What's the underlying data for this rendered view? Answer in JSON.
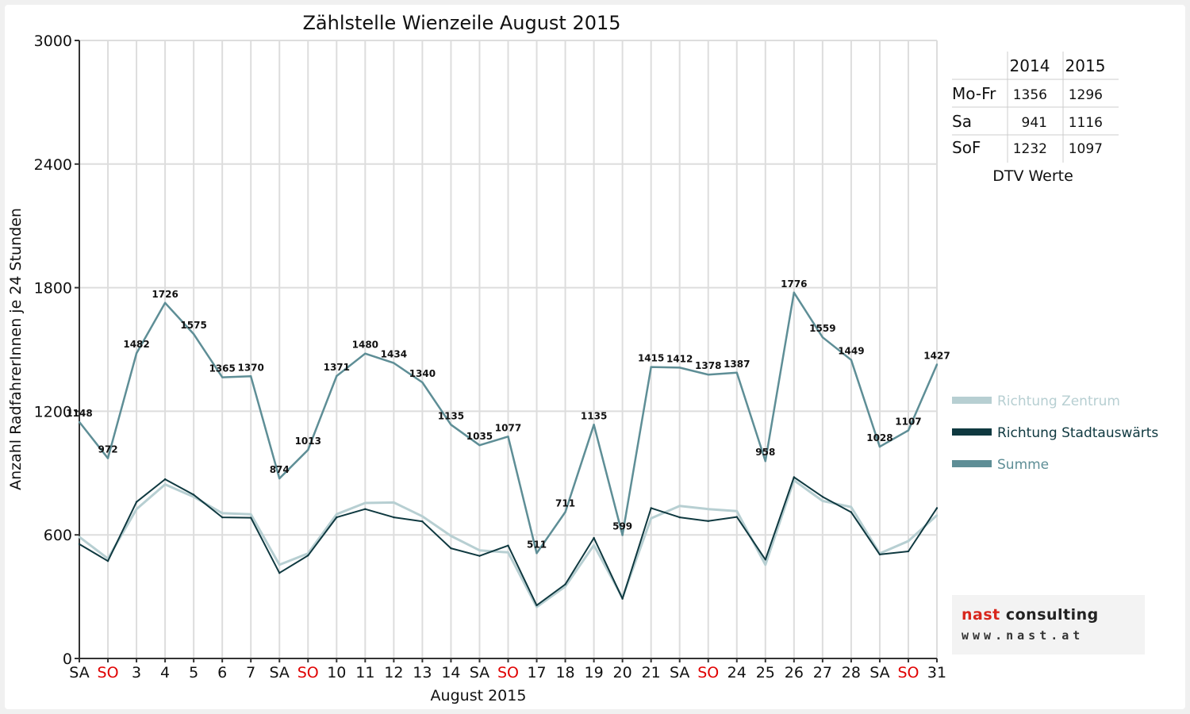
{
  "chart_data": {
    "type": "line",
    "title": "Zählstelle Wienzeile August 2015",
    "xlabel": "August 2015",
    "ylabel": "Anzahl RadfahrerInnen je 24 Stunden",
    "ylim": [
      0,
      3000
    ],
    "yticks": [
      0,
      600,
      1200,
      1800,
      2400,
      3000
    ],
    "grid": true,
    "legend_position": "right",
    "categories": [
      "SA",
      "SO",
      "3",
      "4",
      "5",
      "6",
      "7",
      "SA",
      "SO",
      "10",
      "11",
      "12",
      "13",
      "14",
      "SA",
      "SO",
      "17",
      "18",
      "19",
      "20",
      "21",
      "SA",
      "SO",
      "24",
      "25",
      "26",
      "27",
      "28",
      "SA",
      "SO",
      "31"
    ],
    "category_colors": [
      "#111111",
      "#e00000",
      "#111111",
      "#111111",
      "#111111",
      "#111111",
      "#111111",
      "#111111",
      "#e00000",
      "#111111",
      "#111111",
      "#111111",
      "#111111",
      "#111111",
      "#111111",
      "#e00000",
      "#111111",
      "#111111",
      "#111111",
      "#111111",
      "#111111",
      "#111111",
      "#e00000",
      "#111111",
      "#111111",
      "#111111",
      "#111111",
      "#111111",
      "#111111",
      "#e00000",
      "#111111"
    ],
    "series": [
      {
        "name": "Richtung Zentrum",
        "color": "#b7cfd2",
        "width": 3,
        "values": [
          590,
          485,
          725,
          845,
          785,
          705,
          700,
          455,
          510,
          700,
          755,
          757,
          690,
          595,
          525,
          515,
          250,
          350,
          550,
          295,
          680,
          740,
          725,
          715,
          455,
          865,
          765,
          735,
          510,
          570,
          695
        ]
      },
      {
        "name": "Richtung Stadtauswärts",
        "color": "#0f3940",
        "width": 2,
        "values": [
          555,
          473,
          760,
          870,
          795,
          685,
          683,
          415,
          500,
          685,
          725,
          685,
          665,
          535,
          498,
          548,
          258,
          360,
          585,
          290,
          730,
          685,
          667,
          687,
          480,
          880,
          785,
          710,
          505,
          520,
          730
        ]
      },
      {
        "name": "Summe",
        "color": "#5e8e96",
        "width": 2.5,
        "values": [
          1148,
          972,
          1482,
          1726,
          1575,
          1365,
          1370,
          874,
          1013,
          1371,
          1480,
          1434,
          1340,
          1135,
          1035,
          1077,
          511,
          711,
          1135,
          599,
          1415,
          1412,
          1378,
          1387,
          958,
          1776,
          1559,
          1449,
          1028,
          1107,
          1427
        ]
      }
    ],
    "labels": [
      "1148",
      "972",
      "1482",
      "1726",
      "1575",
      "1365",
      "1370",
      "874",
      "1013",
      "1371",
      "1480",
      "1434",
      "1340",
      "1135",
      "1035",
      "1077",
      "511",
      "711",
      "1135",
      "599",
      "1415",
      "1412",
      "1378",
      "1387",
      "958",
      "1776",
      "1559",
      "1449",
      "1028",
      "1107",
      "1427"
    ]
  },
  "dtv_table": {
    "headers": [
      "",
      "2014",
      "2015"
    ],
    "rows": [
      [
        "Mo-Fr",
        "1356",
        "1296"
      ],
      [
        "Sa",
        "941",
        "1116"
      ],
      [
        "SoF",
        "1232",
        "1097"
      ]
    ],
    "caption": "DTV Werte"
  },
  "logo": {
    "main_red": "nast",
    "main_dark": " consulting",
    "url": "www.nast.at"
  }
}
